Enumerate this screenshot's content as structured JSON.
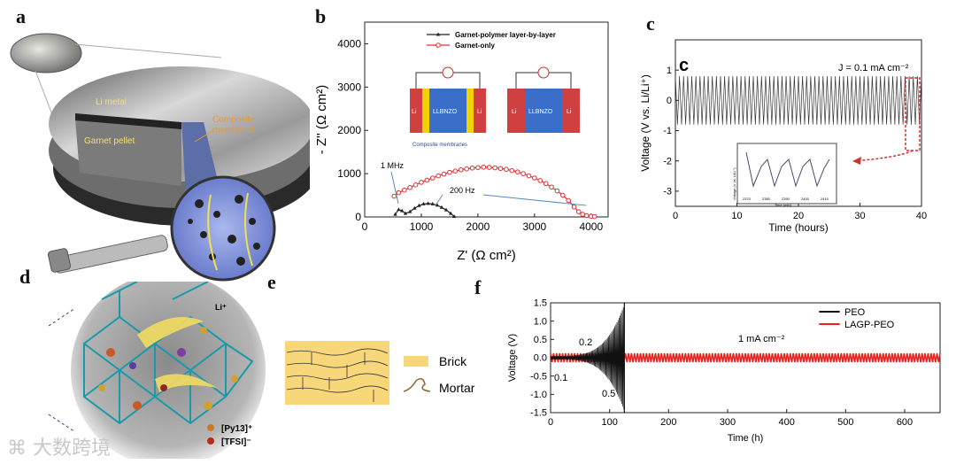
{
  "panel_labels": {
    "a": "a",
    "b": "b",
    "c": "c",
    "d": "d",
    "e": "e",
    "f": "f"
  },
  "panel_a": {
    "li_metal": "Li metal",
    "garnet_pellet": "Garnet pellet",
    "composite_membrane": "Composite\nmembrane"
  },
  "panel_d": {
    "li_ion": "Li⁺",
    "legend_pyr": "[Py13]⁺",
    "legend_tfsi": "[TFSI]⁻"
  },
  "panel_e": {
    "brick": "Brick",
    "mortar": "Mortar"
  },
  "watermark": "大数跨境",
  "chart_data": [
    {
      "id": "b",
      "type": "scatter",
      "xlabel": "Z' (Ω cm²)",
      "ylabel": "- Z'' (Ω cm²)",
      "xlim": [
        0,
        4300
      ],
      "ylim": [
        0,
        4500
      ],
      "xticks": [
        0,
        1000,
        2000,
        3000,
        4000
      ],
      "yticks": [
        0,
        1000,
        2000,
        3000,
        4000
      ],
      "series": [
        {
          "name": "Garnet-polymer layer-by-layer",
          "color": "#222222",
          "x": [
            540,
            600,
            660,
            720,
            800,
            880,
            960,
            1040,
            1120,
            1200,
            1280,
            1360,
            1440,
            1520,
            1580
          ],
          "y": [
            60,
            170,
            140,
            80,
            120,
            200,
            260,
            300,
            310,
            300,
            270,
            220,
            160,
            80,
            10
          ]
        },
        {
          "name": "Garnet-only",
          "color": "#d93030",
          "x": [
            520,
            600,
            700,
            800,
            900,
            1000,
            1100,
            1200,
            1300,
            1400,
            1500,
            1600,
            1700,
            1800,
            1900,
            2000,
            2100,
            2200,
            2300,
            2400,
            2500,
            2600,
            2700,
            2800,
            2900,
            3000,
            3100,
            3200,
            3300,
            3400,
            3500,
            3600,
            3700,
            3780,
            3850,
            3920,
            4000,
            4060
          ],
          "y": [
            480,
            560,
            620,
            680,
            740,
            800,
            850,
            900,
            950,
            990,
            1030,
            1060,
            1090,
            1110,
            1130,
            1140,
            1150,
            1145,
            1135,
            1120,
            1100,
            1070,
            1040,
            1000,
            950,
            900,
            840,
            770,
            690,
            600,
            500,
            380,
            230,
            120,
            60,
            30,
            15,
            10
          ]
        }
      ],
      "annotations": {
        "freq_high": "1 MHz",
        "freq_low": "200 Hz"
      },
      "inset": {
        "left_cell": [
          "Li",
          "LLBNZO",
          "Li"
        ],
        "right_cell": [
          "Li",
          "LLBNZO",
          "Li"
        ],
        "caption": "Composite membranes"
      }
    },
    {
      "id": "c",
      "type": "line",
      "inner_label": "c",
      "xlabel": "Time (hours)",
      "ylabel": "Voltage (V vs. Li/Li⁺)",
      "xlim": [
        0,
        40
      ],
      "ylim": [
        -3.5,
        2
      ],
      "xticks": [
        0,
        10,
        20,
        30,
        40
      ],
      "yticks": [
        -3,
        -2,
        -1,
        0,
        1
      ],
      "current_density": "J = 0.1 mA cm⁻²",
      "series": [
        {
          "name": "cycling",
          "color": "#333333",
          "amplitude": 0.8,
          "cycles": 60,
          "x_start": 0,
          "x_end": 40
        }
      ],
      "inset": {
        "ylabel": "Voltage (V vs. Li/Li⁺)",
        "xlabel": "Time (min)",
        "xticks": [
          "2370",
          "2380",
          "2390",
          "2400",
          "2410"
        ]
      }
    },
    {
      "id": "f",
      "type": "line",
      "xlabel": "Time (h)",
      "ylabel": "Voltage (V)",
      "xlim": [
        0,
        660
      ],
      "ylim": [
        -1.5,
        1.5
      ],
      "xticks": [
        0,
        100,
        200,
        300,
        400,
        500,
        600
      ],
      "yticks": [
        -1.5,
        -1.0,
        -0.5,
        0.0,
        0.5,
        1.0,
        1.5
      ],
      "ytick_labels": [
        "-1.5",
        "-1.0",
        "-0.5",
        "0.0",
        "0.5",
        "1.0",
        "1.5"
      ],
      "series": [
        {
          "name": "PEO",
          "color": "#111111",
          "x_end": 125,
          "amplitude_start": 0.05,
          "amplitude_end": 1.45
        },
        {
          "name": "LAGP-PEO",
          "color": "#e8231f",
          "x_end": 660,
          "amplitude": 0.12
        }
      ],
      "annotations": {
        "step1": "0.1",
        "step2": "0.2",
        "step3": "0.5",
        "current_density": "1 mA cm⁻²"
      }
    }
  ]
}
